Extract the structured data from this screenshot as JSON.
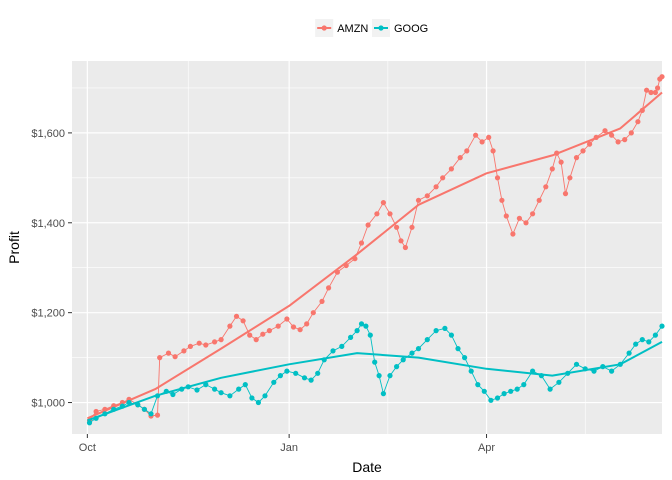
{
  "colors": {
    "amzn": "#F8766D",
    "goog": "#00BFC4"
  },
  "chart_data": {
    "type": "line",
    "xlabel": "Date",
    "ylabel": "Profit",
    "x_domain": [
      "2017-09-24",
      "2018-06-20"
    ],
    "ylim": [
      930,
      1760
    ],
    "yticks": [
      1000,
      1200,
      1400,
      1600
    ],
    "ytick_labels": [
      "$1,000",
      "$1,200",
      "$1,400",
      "$1,600"
    ],
    "xticks": [
      "2017-10-01",
      "2018-01-01",
      "2018-04-01"
    ],
    "xtick_labels": [
      "Oct",
      "Jan",
      "Apr"
    ],
    "x_minor_ticks": [
      "2017-11-16",
      "2018-02-15",
      "2018-05-16"
    ],
    "grid": true,
    "legend": {
      "position": "top",
      "entries": [
        "AMZN",
        "GOOG"
      ]
    },
    "series": [
      {
        "name": "AMZN",
        "color_key": "amzn",
        "points": [
          [
            "2017-10-02",
            960
          ],
          [
            "2017-10-05",
            980
          ],
          [
            "2017-10-09",
            985
          ],
          [
            "2017-10-13",
            993
          ],
          [
            "2017-10-17",
            1000
          ],
          [
            "2017-10-20",
            1007
          ],
          [
            "2017-10-24",
            995
          ],
          [
            "2017-10-27",
            985
          ],
          [
            "2017-10-30",
            970
          ],
          [
            "2017-11-02",
            972
          ],
          [
            "2017-11-03",
            1100
          ],
          [
            "2017-11-07",
            1110
          ],
          [
            "2017-11-10",
            1102
          ],
          [
            "2017-11-14",
            1115
          ],
          [
            "2017-11-17",
            1125
          ],
          [
            "2017-11-21",
            1132
          ],
          [
            "2017-11-24",
            1128
          ],
          [
            "2017-11-28",
            1135
          ],
          [
            "2017-12-01",
            1140
          ],
          [
            "2017-12-05",
            1170
          ],
          [
            "2017-12-08",
            1192
          ],
          [
            "2017-12-11",
            1182
          ],
          [
            "2017-12-14",
            1150
          ],
          [
            "2017-12-17",
            1140
          ],
          [
            "2017-12-20",
            1152
          ],
          [
            "2017-12-23",
            1160
          ],
          [
            "2017-12-27",
            1170
          ],
          [
            "2017-12-31",
            1186
          ],
          [
            "2018-01-03",
            1168
          ],
          [
            "2018-01-06",
            1162
          ],
          [
            "2018-01-09",
            1175
          ],
          [
            "2018-01-12",
            1200
          ],
          [
            "2018-01-16",
            1225
          ],
          [
            "2018-01-19",
            1255
          ],
          [
            "2018-01-23",
            1290
          ],
          [
            "2018-01-27",
            1305
          ],
          [
            "2018-01-31",
            1320
          ],
          [
            "2018-02-03",
            1355
          ],
          [
            "2018-02-06",
            1395
          ],
          [
            "2018-02-10",
            1420
          ],
          [
            "2018-02-13",
            1445
          ],
          [
            "2018-02-16",
            1420
          ],
          [
            "2018-02-19",
            1390
          ],
          [
            "2018-02-21",
            1360
          ],
          [
            "2018-02-23",
            1345
          ],
          [
            "2018-02-26",
            1390
          ],
          [
            "2018-03-01",
            1450
          ],
          [
            "2018-03-05",
            1460
          ],
          [
            "2018-03-09",
            1480
          ],
          [
            "2018-03-12",
            1500
          ],
          [
            "2018-03-16",
            1520
          ],
          [
            "2018-03-20",
            1545
          ],
          [
            "2018-03-23",
            1560
          ],
          [
            "2018-03-27",
            1595
          ],
          [
            "2018-03-30",
            1580
          ],
          [
            "2018-04-02",
            1590
          ],
          [
            "2018-04-04",
            1560
          ],
          [
            "2018-04-06",
            1500
          ],
          [
            "2018-04-08",
            1450
          ],
          [
            "2018-04-10",
            1415
          ],
          [
            "2018-04-13",
            1375
          ],
          [
            "2018-04-16",
            1410
          ],
          [
            "2018-04-19",
            1400
          ],
          [
            "2018-04-22",
            1420
          ],
          [
            "2018-04-25",
            1450
          ],
          [
            "2018-04-28",
            1480
          ],
          [
            "2018-05-01",
            1520
          ],
          [
            "2018-05-03",
            1555
          ],
          [
            "2018-05-05",
            1535
          ],
          [
            "2018-05-07",
            1465
          ],
          [
            "2018-05-09",
            1500
          ],
          [
            "2018-05-12",
            1545
          ],
          [
            "2018-05-15",
            1560
          ],
          [
            "2018-05-18",
            1575
          ],
          [
            "2018-05-21",
            1590
          ],
          [
            "2018-05-25",
            1605
          ],
          [
            "2018-05-28",
            1595
          ],
          [
            "2018-05-31",
            1580
          ],
          [
            "2018-06-03",
            1585
          ],
          [
            "2018-06-06",
            1600
          ],
          [
            "2018-06-09",
            1625
          ],
          [
            "2018-06-11",
            1650
          ],
          [
            "2018-06-13",
            1695
          ],
          [
            "2018-06-15",
            1690
          ],
          [
            "2018-06-17",
            1690
          ],
          [
            "2018-06-18",
            1700
          ],
          [
            "2018-06-19",
            1720
          ],
          [
            "2018-06-20",
            1725
          ]
        ],
        "trend": [
          [
            "2017-10-01",
            965
          ],
          [
            "2017-11-01",
            1030
          ],
          [
            "2017-12-01",
            1120
          ],
          [
            "2018-01-01",
            1215
          ],
          [
            "2018-02-01",
            1330
          ],
          [
            "2018-03-01",
            1440
          ],
          [
            "2018-04-01",
            1510
          ],
          [
            "2018-05-01",
            1550
          ],
          [
            "2018-06-01",
            1610
          ],
          [
            "2018-06-20",
            1690
          ]
        ]
      },
      {
        "name": "GOOG",
        "color_key": "goog",
        "points": [
          [
            "2017-10-02",
            955
          ],
          [
            "2017-10-05",
            965
          ],
          [
            "2017-10-09",
            975
          ],
          [
            "2017-10-13",
            985
          ],
          [
            "2017-10-17",
            992
          ],
          [
            "2017-10-20",
            1000
          ],
          [
            "2017-10-24",
            995
          ],
          [
            "2017-10-27",
            985
          ],
          [
            "2017-10-30",
            975
          ],
          [
            "2017-11-02",
            1015
          ],
          [
            "2017-11-06",
            1025
          ],
          [
            "2017-11-09",
            1018
          ],
          [
            "2017-11-13",
            1030
          ],
          [
            "2017-11-16",
            1035
          ],
          [
            "2017-11-20",
            1028
          ],
          [
            "2017-11-24",
            1040
          ],
          [
            "2017-11-28",
            1030
          ],
          [
            "2017-12-01",
            1022
          ],
          [
            "2017-12-05",
            1015
          ],
          [
            "2017-12-09",
            1030
          ],
          [
            "2017-12-12",
            1040
          ],
          [
            "2017-12-15",
            1010
          ],
          [
            "2017-12-18",
            1000
          ],
          [
            "2017-12-21",
            1015
          ],
          [
            "2017-12-25",
            1045
          ],
          [
            "2017-12-28",
            1060
          ],
          [
            "2017-12-31",
            1070
          ],
          [
            "2018-01-04",
            1065
          ],
          [
            "2018-01-08",
            1055
          ],
          [
            "2018-01-11",
            1050
          ],
          [
            "2018-01-14",
            1065
          ],
          [
            "2018-01-17",
            1095
          ],
          [
            "2018-01-21",
            1115
          ],
          [
            "2018-01-25",
            1125
          ],
          [
            "2018-01-29",
            1145
          ],
          [
            "2018-02-01",
            1160
          ],
          [
            "2018-02-03",
            1175
          ],
          [
            "2018-02-05",
            1170
          ],
          [
            "2018-02-07",
            1150
          ],
          [
            "2018-02-09",
            1090
          ],
          [
            "2018-02-11",
            1060
          ],
          [
            "2018-02-13",
            1020
          ],
          [
            "2018-02-16",
            1060
          ],
          [
            "2018-02-19",
            1080
          ],
          [
            "2018-02-22",
            1095
          ],
          [
            "2018-02-26",
            1110
          ],
          [
            "2018-03-01",
            1120
          ],
          [
            "2018-03-05",
            1140
          ],
          [
            "2018-03-09",
            1160
          ],
          [
            "2018-03-13",
            1165
          ],
          [
            "2018-03-16",
            1150
          ],
          [
            "2018-03-19",
            1120
          ],
          [
            "2018-03-22",
            1100
          ],
          [
            "2018-03-25",
            1070
          ],
          [
            "2018-03-28",
            1040
          ],
          [
            "2018-03-31",
            1025
          ],
          [
            "2018-04-03",
            1005
          ],
          [
            "2018-04-06",
            1010
          ],
          [
            "2018-04-09",
            1020
          ],
          [
            "2018-04-12",
            1025
          ],
          [
            "2018-04-15",
            1030
          ],
          [
            "2018-04-18",
            1040
          ],
          [
            "2018-04-22",
            1070
          ],
          [
            "2018-04-26",
            1060
          ],
          [
            "2018-04-30",
            1030
          ],
          [
            "2018-05-04",
            1045
          ],
          [
            "2018-05-08",
            1065
          ],
          [
            "2018-05-12",
            1085
          ],
          [
            "2018-05-16",
            1075
          ],
          [
            "2018-05-20",
            1070
          ],
          [
            "2018-05-24",
            1080
          ],
          [
            "2018-05-28",
            1070
          ],
          [
            "2018-06-01",
            1085
          ],
          [
            "2018-06-05",
            1110
          ],
          [
            "2018-06-08",
            1130
          ],
          [
            "2018-06-11",
            1140
          ],
          [
            "2018-06-14",
            1135
          ],
          [
            "2018-06-17",
            1150
          ],
          [
            "2018-06-20",
            1170
          ]
        ],
        "trend": [
          [
            "2017-10-01",
            960
          ],
          [
            "2017-11-01",
            1015
          ],
          [
            "2017-12-01",
            1055
          ],
          [
            "2018-01-01",
            1085
          ],
          [
            "2018-02-01",
            1110
          ],
          [
            "2018-03-01",
            1100
          ],
          [
            "2018-04-01",
            1075
          ],
          [
            "2018-05-01",
            1060
          ],
          [
            "2018-06-01",
            1085
          ],
          [
            "2018-06-20",
            1135
          ]
        ]
      }
    ]
  }
}
